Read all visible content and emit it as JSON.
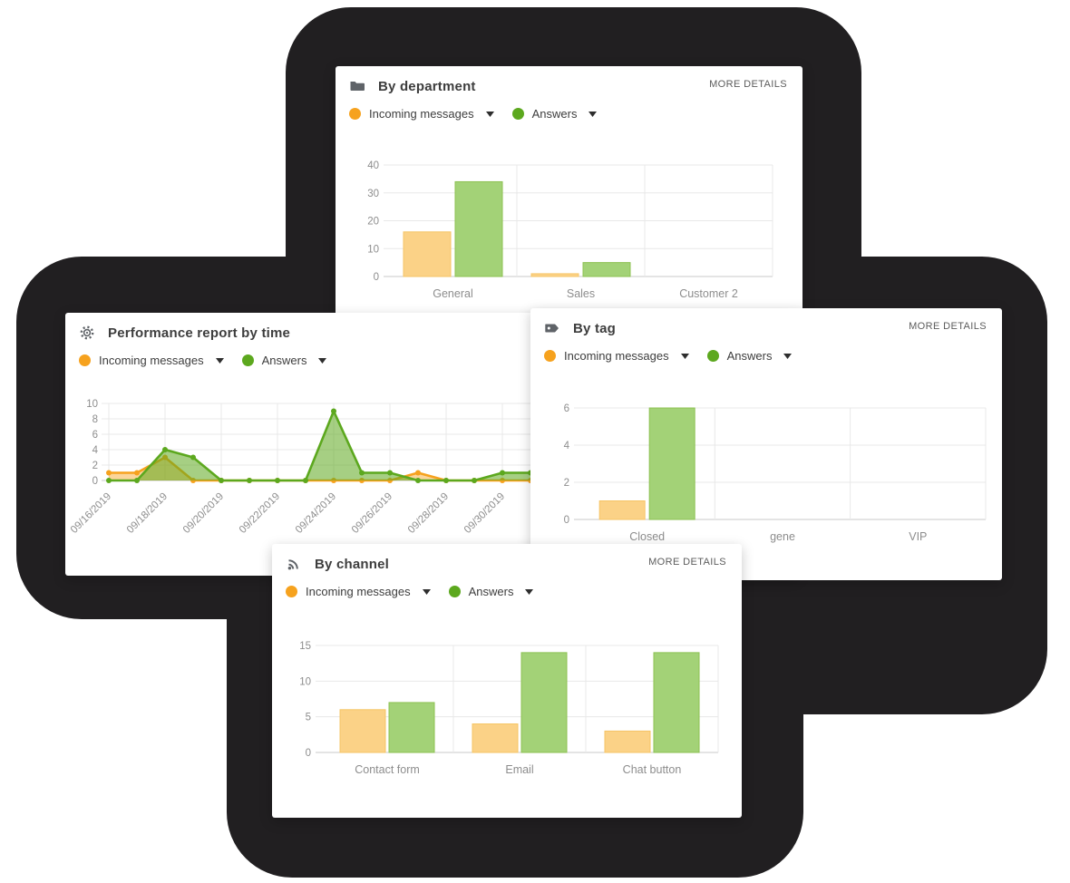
{
  "ui": {
    "more_details_label": "MORE DETAILS"
  },
  "legend": {
    "incoming": "Incoming messages",
    "answers": "Answers"
  },
  "colors": {
    "incoming": "#F6A21E",
    "answers": "#5CA81E",
    "incoming_bar_fill": "#FBD287",
    "incoming_bar_stroke": "#F6C464",
    "answers_bar_fill": "#A3D277",
    "answers_bar_stroke": "#8CC152",
    "incoming_area_opacity": 0.45,
    "answers_area_opacity": 0.55,
    "grid": "#E8E8E8",
    "baseline": "#C9C9C9",
    "axis_text": "#8D8D8D",
    "blob": "#211F21",
    "icon": "#5F6368"
  },
  "cards": {
    "department": {
      "title": "By department",
      "icon": "folder-icon"
    },
    "performance": {
      "title": "Performance report by time",
      "icon": "gear-icon"
    },
    "tag": {
      "title": "By tag",
      "icon": "tag-icon"
    },
    "channel": {
      "title": "By channel",
      "icon": "rss-icon"
    }
  },
  "chart_data": [
    {
      "id": "by_department",
      "type": "bar",
      "title": "By department",
      "categories": [
        "General",
        "Sales",
        "Customer 2"
      ],
      "series": [
        {
          "name": "Incoming messages",
          "values": [
            16,
            1,
            0
          ]
        },
        {
          "name": "Answers",
          "values": [
            34,
            5,
            0
          ]
        }
      ],
      "yticks": [
        0,
        10,
        20,
        30,
        40
      ],
      "ylim": [
        0,
        40
      ],
      "grid": true,
      "legend_position": "top-left"
    },
    {
      "id": "performance_by_time",
      "type": "area",
      "title": "Performance report by time",
      "x": [
        "09/16/2019",
        "09/17/2019",
        "09/18/2019",
        "09/19/2019",
        "09/20/2019",
        "09/21/2019",
        "09/22/2019",
        "09/23/2019",
        "09/24/2019",
        "09/25/2019",
        "09/26/2019",
        "09/27/2019",
        "09/28/2019",
        "09/29/2019",
        "09/30/2019",
        "10/01/2019"
      ],
      "xtick_labels": [
        "09/16/2019",
        "09/18/2019",
        "09/20/2019",
        "09/22/2019",
        "09/24/2019",
        "09/26/2019",
        "09/28/2019",
        "09/30/2019"
      ],
      "series": [
        {
          "name": "Incoming messages",
          "values": [
            1,
            1,
            3,
            0,
            0,
            0,
            0,
            0,
            0,
            0,
            0,
            1,
            0,
            0,
            0,
            0
          ]
        },
        {
          "name": "Answers",
          "values": [
            0,
            0,
            4,
            3,
            0,
            0,
            0,
            0,
            9,
            1,
            1,
            0,
            0,
            0,
            1,
            1
          ]
        }
      ],
      "yticks": [
        0,
        2,
        4,
        6,
        8,
        10
      ],
      "ylim": [
        0,
        10
      ],
      "grid": true,
      "legend_position": "top-left"
    },
    {
      "id": "by_tag",
      "type": "bar",
      "title": "By tag",
      "categories": [
        "Closed",
        "gene",
        "VIP"
      ],
      "series": [
        {
          "name": "Incoming messages",
          "values": [
            1,
            0,
            0
          ]
        },
        {
          "name": "Answers",
          "values": [
            6,
            0,
            0
          ]
        }
      ],
      "yticks": [
        0,
        2,
        4,
        6
      ],
      "ylim": [
        0,
        6
      ],
      "grid": true,
      "legend_position": "top-left"
    },
    {
      "id": "by_channel",
      "type": "bar",
      "title": "By channel",
      "categories": [
        "Contact form",
        "Email",
        "Chat button"
      ],
      "series": [
        {
          "name": "Incoming messages",
          "values": [
            6,
            4,
            3
          ]
        },
        {
          "name": "Answers",
          "values": [
            7,
            14,
            14
          ]
        }
      ],
      "yticks": [
        0,
        5,
        10,
        15
      ],
      "ylim": [
        0,
        15
      ],
      "grid": true,
      "legend_position": "top-left"
    }
  ]
}
